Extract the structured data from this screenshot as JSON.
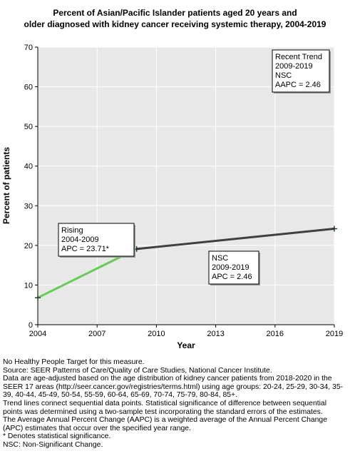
{
  "chart_data": {
    "type": "line",
    "title_lines": [
      "Percent of Asian/Pacific Islander patients aged 20 years and",
      "older diagnosed with kidney cancer receiving systemic therapy, 2004-2019"
    ],
    "xlabel": "Year",
    "ylabel": "Percent of patients",
    "xlim": [
      2004,
      2019
    ],
    "ylim": [
      0,
      70
    ],
    "x_ticks": [
      2004,
      2007,
      2010,
      2013,
      2016,
      2019
    ],
    "y_ticks": [
      0,
      10,
      20,
      30,
      40,
      50,
      60,
      70
    ],
    "grid": true,
    "points": [
      {
        "x": 2004,
        "y": 6.8
      },
      {
        "x": 2009,
        "y": 19.1
      },
      {
        "x": 2019,
        "y": 24.2
      }
    ],
    "segments": [
      {
        "x": [
          2004,
          2009
        ],
        "y": [
          6.8,
          19.1
        ],
        "color": "#66cc55"
      },
      {
        "x": [
          2009,
          2019
        ],
        "y": [
          19.1,
          24.2
        ],
        "color": "#404040"
      }
    ],
    "annotations": [
      {
        "lines": [
          "Rising",
          "2004-2009",
          "APC = 23.71*"
        ]
      },
      {
        "lines": [
          "NSC",
          "2009-2019",
          "APC =  2.46"
        ]
      },
      {
        "lines": [
          "Recent Trend",
          "2009-2019",
          "NSC",
          "AAPC =  2.46"
        ]
      }
    ]
  },
  "footnotes": [
    "No Healthy People Target for this measure.",
    "Source: SEER Patterns of Care/Quality of Care Studies, National Cancer Institute.",
    "Data are age-adjusted based on the age distribution of kidney cancer patients from 2018-2020 in the SEER 17 areas (http://seer.cancer.gov/registries/terms.html) using age groups: 20-24, 25-29, 30-34, 35-39, 40-44, 45-49, 50-54, 55-59, 60-64, 65-69, 70-74, 75-79, 80-84, 85+.",
    "Trend lines connect sequential data points. Statistical significance of difference between sequential points was determined using a two-sample test incorporating the standard errors of the estimates.",
    "The Average Annual Percent Change (AAPC) is a weighted average of the Annual Percent Change (APC) estimates that occur over the specified year range.",
    "* Denotes statistical significance.",
    "NSC: Non-Significant Change."
  ]
}
